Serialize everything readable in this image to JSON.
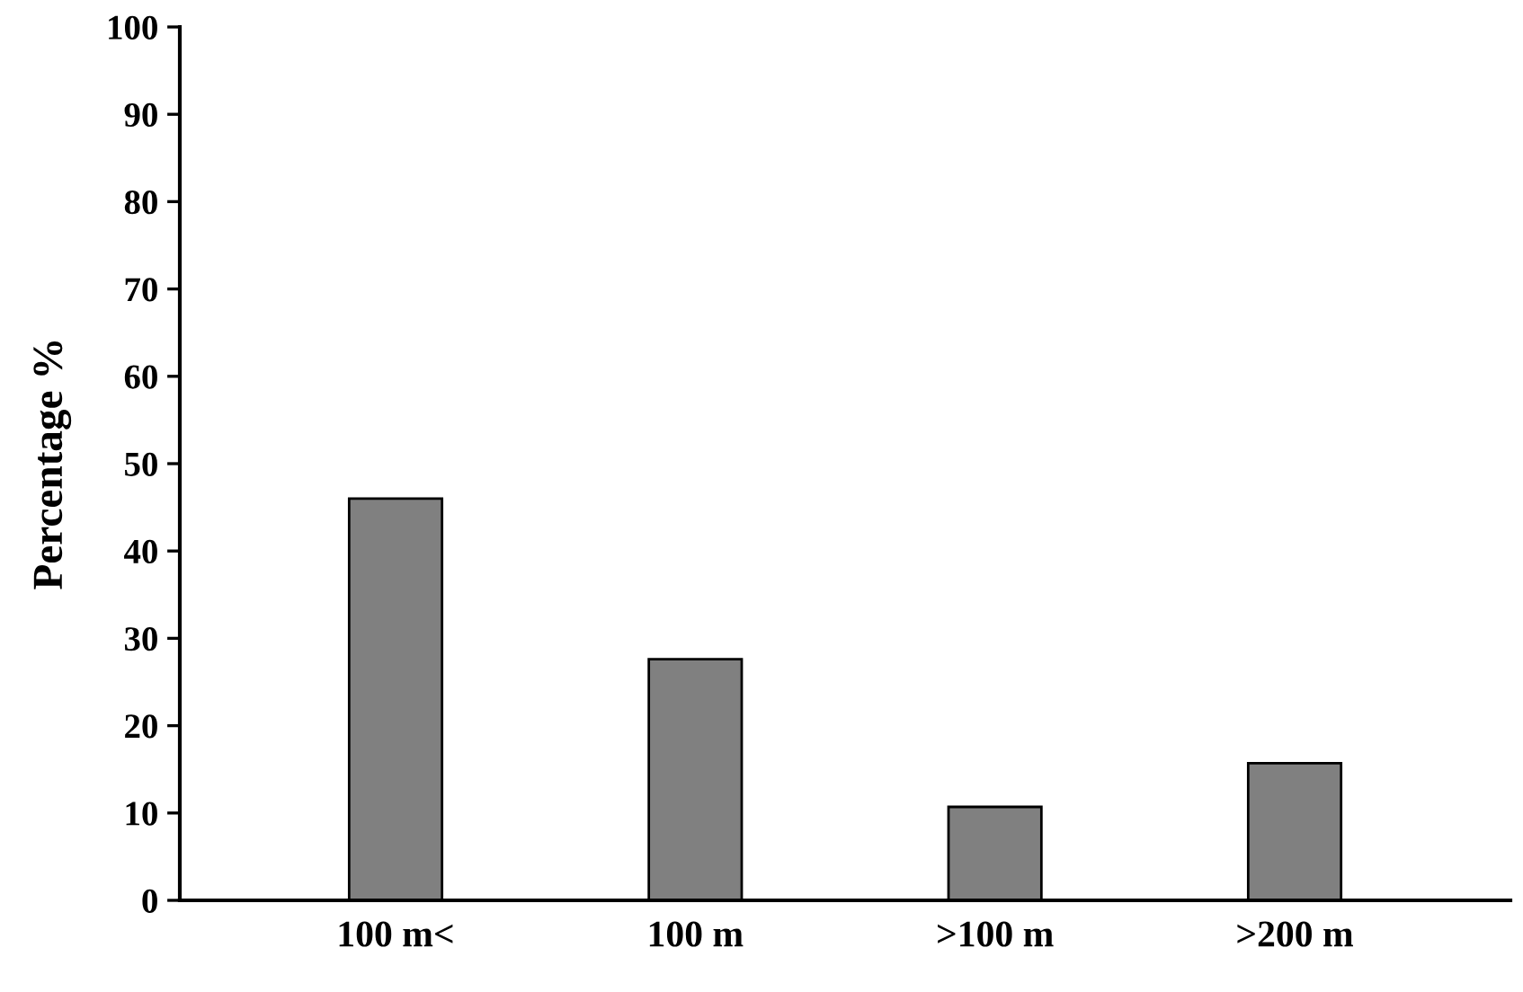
{
  "chart_data": {
    "type": "bar",
    "ylabel": "Percentage %",
    "categories": [
      "100 m<",
      "100 m",
      ">100 m",
      ">200 m"
    ],
    "values": [
      46.0,
      27.6,
      10.7,
      15.7
    ],
    "color": "#808080",
    "ylim": [
      0,
      100
    ],
    "yticks": [
      0,
      10,
      20,
      30,
      40,
      50,
      60,
      70,
      80,
      90,
      100
    ],
    "grid": false,
    "legend": false
  }
}
